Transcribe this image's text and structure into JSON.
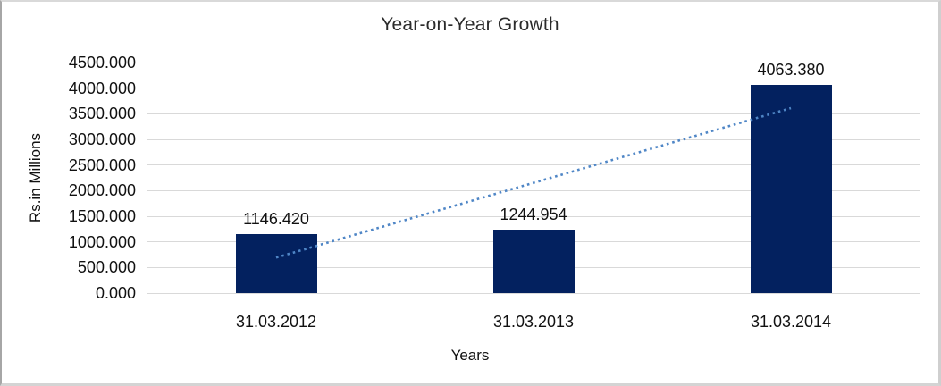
{
  "chart_data": {
    "type": "bar",
    "title": "Year-on-Year Growth",
    "xlabel": "Years",
    "ylabel": "Rs.in Millions",
    "categories": [
      "31.03.2012",
      "31.03.2013",
      "31.03.2014"
    ],
    "values": [
      1146.42,
      1244.954,
      4063.38
    ],
    "data_labels": [
      "1146.420",
      "1244.954",
      "4063.380"
    ],
    "ylim": [
      0,
      4500
    ],
    "ytick_step": 500,
    "ytick_labels": [
      "0.000",
      "500.000",
      "1000.000",
      "1500.000",
      "2000.000",
      "2500.000",
      "3000.000",
      "3500.000",
      "4000.000",
      "4500.000"
    ],
    "grid": true,
    "legend": "none",
    "bar_color": "#03215F",
    "gridline_color": "#D9D9D9",
    "trendline": {
      "type": "linear",
      "style": "dotted",
      "color": "#4F86C6"
    }
  }
}
